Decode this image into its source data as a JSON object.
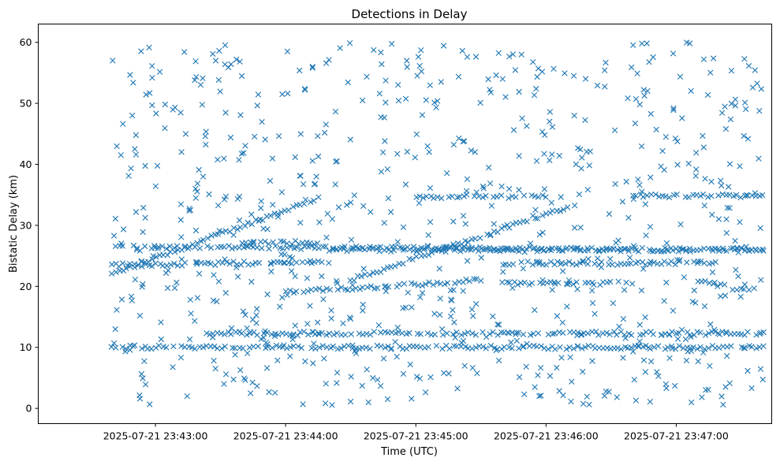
{
  "chart_data": {
    "type": "scatter",
    "title": "Detections in Delay",
    "xlabel": "Time (UTC)",
    "ylabel": "Bistatic Delay (km)",
    "x_ticks": [
      "2025-07-21 23:43:00",
      "2025-07-21 23:44:00",
      "2025-07-21 23:45:00",
      "2025-07-21 23:46:00",
      "2025-07-21 23:47:00"
    ],
    "y_ticks": [
      "0",
      "10",
      "20",
      "30",
      "40",
      "50",
      "60"
    ],
    "xlim_seconds_after_2025-07-21T23:42:00Z": [
      6,
      344
    ],
    "ylim": [
      -2.5,
      63
    ],
    "grid": false,
    "marker": "x",
    "color": "#1f77b4",
    "series": [
      {
        "kind": "line_track",
        "x_start": "2025-07-21 23:42:40",
        "x_end": "2025-07-21 23:44:15",
        "y_start": 22,
        "y_end": 34.5
      },
      {
        "kind": "line_track",
        "x_start": "2025-07-21 23:44:30",
        "x_end": "2025-07-21 23:46:10",
        "y_start": 21,
        "y_end": 33
      },
      {
        "kind": "line_track",
        "x_start": "2025-07-21 23:42:40",
        "x_end": "2025-07-21 23:47:40",
        "y_start": 26.5,
        "y_end": 26
      },
      {
        "kind": "line_track",
        "x_start": "2025-07-21 23:42:40",
        "x_end": "2025-07-21 23:44:20",
        "y_start": 23.5,
        "y_end": 24
      },
      {
        "kind": "line_track",
        "x_start": "2025-07-21 23:44:20",
        "x_end": "2025-07-21 23:47:40",
        "y_start": 26,
        "y_end": 26
      },
      {
        "kind": "line_track",
        "x_start": "2025-07-21 23:42:40",
        "x_end": "2025-07-21 23:47:40",
        "y_start": 10,
        "y_end": 10
      },
      {
        "kind": "line_track",
        "x_start": "2025-07-21 23:43:20",
        "x_end": "2025-07-21 23:47:40",
        "y_start": 12.3,
        "y_end": 12.3
      },
      {
        "kind": "line_track",
        "x_start": "2025-07-21 23:45:40",
        "x_end": "2025-07-21 23:47:20",
        "y_start": 23.8,
        "y_end": 23.8
      },
      {
        "kind": "line_track",
        "x_start": "2025-07-21 23:44:00",
        "x_end": "2025-07-21 23:45:30",
        "y_start": 19,
        "y_end": 21
      },
      {
        "kind": "line_track",
        "x_start": "2025-07-21 23:45:40",
        "x_end": "2025-07-21 23:46:40",
        "y_start": 20.5,
        "y_end": 20.5
      },
      {
        "kind": "line_track",
        "x_start": "2025-07-21 23:47:10",
        "x_end": "2025-07-21 23:47:35",
        "y_start": 21,
        "y_end": 19
      },
      {
        "kind": "line_track",
        "x_start": "2025-07-21 23:46:40",
        "x_end": "2025-07-21 23:47:40",
        "y_start": 34.8,
        "y_end": 34.8
      },
      {
        "kind": "line_track",
        "x_start": "2025-07-21 23:45:00",
        "x_end": "2025-07-21 23:46:00",
        "y_start": 34.7,
        "y_end": 34.7
      },
      {
        "kind": "line_track",
        "x_start": "2025-07-21 23:43:40",
        "x_end": "2025-07-21 23:44:15",
        "y_start": 27.2,
        "y_end": 27.2
      },
      {
        "kind": "noise",
        "x_range": [
          "2025-07-21 23:42:40",
          "2025-07-21 23:47:40"
        ],
        "y_range": [
          0.5,
          60
        ]
      }
    ]
  }
}
